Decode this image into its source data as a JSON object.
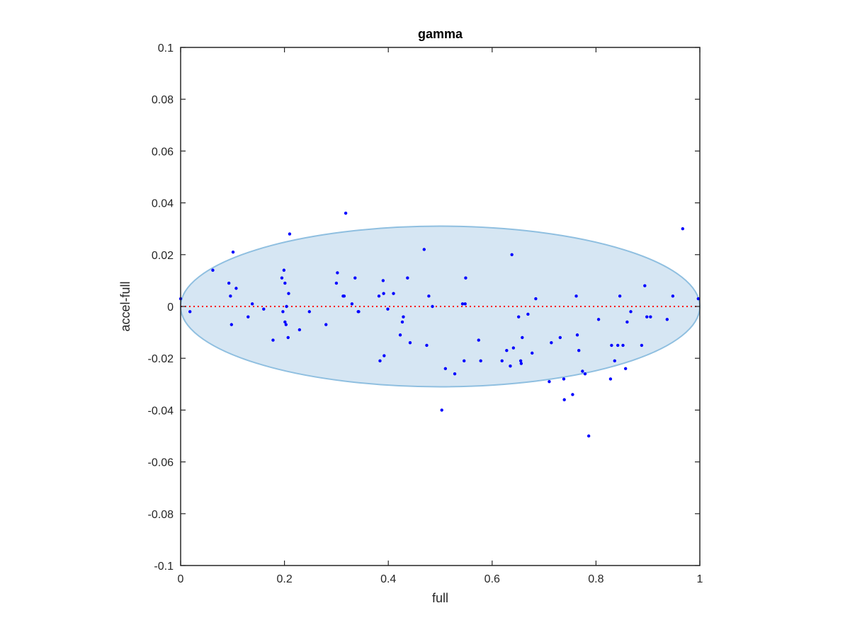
{
  "chart_data": {
    "type": "scatter",
    "title": "gamma",
    "xlabel": "full",
    "ylabel": "accel-full",
    "xlim": [
      0,
      1
    ],
    "ylim": [
      -0.1,
      0.1
    ],
    "x_ticks": [
      "0",
      "0.2",
      "0.4",
      "0.6",
      "0.8",
      "1"
    ],
    "x_tick_values": [
      0,
      0.2,
      0.4,
      0.6,
      0.8,
      1
    ],
    "y_ticks": [
      "-0.1",
      "-0.08",
      "-0.06",
      "-0.04",
      "-0.02",
      "0",
      "0.02",
      "0.04",
      "0.06",
      "0.08",
      "0.1"
    ],
    "y_tick_values": [
      -0.1,
      -0.08,
      -0.06,
      -0.04,
      -0.02,
      0,
      0.02,
      0.04,
      0.06,
      0.08,
      0.1
    ],
    "grid": false,
    "reference_line": {
      "y": 0,
      "style": "dotted",
      "color": "#ff0000"
    },
    "confidence_ellipse": {
      "center": [
        0.5,
        0
      ],
      "semi_x": 0.5,
      "semi_y": 0.031,
      "fill": "#d6e6f3",
      "stroke": "#8fbfe0"
    },
    "point_color": "#0000ff",
    "points": [
      [
        0.0,
        0.003
      ],
      [
        0.018,
        -0.002
      ],
      [
        0.062,
        0.014
      ],
      [
        0.093,
        0.009
      ],
      [
        0.096,
        0.004
      ],
      [
        0.098,
        -0.007
      ],
      [
        0.101,
        0.021
      ],
      [
        0.107,
        0.007
      ],
      [
        0.13,
        -0.004
      ],
      [
        0.138,
        0.001
      ],
      [
        0.16,
        -0.001
      ],
      [
        0.178,
        -0.013
      ],
      [
        0.195,
        0.011
      ],
      [
        0.197,
        -0.002
      ],
      [
        0.199,
        0.014
      ],
      [
        0.201,
        0.009
      ],
      [
        0.201,
        -0.006
      ],
      [
        0.203,
        -0.007
      ],
      [
        0.204,
        0.0
      ],
      [
        0.207,
        -0.012
      ],
      [
        0.208,
        0.005
      ],
      [
        0.21,
        0.028
      ],
      [
        0.229,
        -0.009
      ],
      [
        0.248,
        -0.002
      ],
      [
        0.28,
        -0.007
      ],
      [
        0.3,
        0.009
      ],
      [
        0.302,
        0.013
      ],
      [
        0.313,
        0.004
      ],
      [
        0.315,
        0.004
      ],
      [
        0.318,
        0.036
      ],
      [
        0.33,
        0.001
      ],
      [
        0.336,
        0.011
      ],
      [
        0.342,
        -0.002
      ],
      [
        0.343,
        -0.002
      ],
      [
        0.382,
        0.004
      ],
      [
        0.384,
        -0.021
      ],
      [
        0.39,
        0.01
      ],
      [
        0.391,
        0.005
      ],
      [
        0.392,
        -0.019
      ],
      [
        0.399,
        -0.001
      ],
      [
        0.41,
        0.005
      ],
      [
        0.423,
        -0.011
      ],
      [
        0.427,
        -0.006
      ],
      [
        0.429,
        -0.004
      ],
      [
        0.437,
        0.011
      ],
      [
        0.442,
        -0.014
      ],
      [
        0.469,
        0.022
      ],
      [
        0.474,
        -0.015
      ],
      [
        0.478,
        0.004
      ],
      [
        0.485,
        0.0
      ],
      [
        0.503,
        -0.04
      ],
      [
        0.51,
        -0.024
      ],
      [
        0.528,
        -0.026
      ],
      [
        0.543,
        0.001
      ],
      [
        0.546,
        -0.021
      ],
      [
        0.548,
        0.001
      ],
      [
        0.549,
        0.011
      ],
      [
        0.574,
        -0.013
      ],
      [
        0.578,
        -0.021
      ],
      [
        0.619,
        -0.021
      ],
      [
        0.628,
        -0.017
      ],
      [
        0.635,
        -0.023
      ],
      [
        0.638,
        0.02
      ],
      [
        0.641,
        -0.016
      ],
      [
        0.651,
        -0.004
      ],
      [
        0.655,
        -0.021
      ],
      [
        0.656,
        -0.022
      ],
      [
        0.658,
        -0.012
      ],
      [
        0.669,
        -0.003
      ],
      [
        0.677,
        -0.018
      ],
      [
        0.684,
        0.003
      ],
      [
        0.71,
        -0.029
      ],
      [
        0.714,
        -0.014
      ],
      [
        0.731,
        -0.012
      ],
      [
        0.738,
        -0.028
      ],
      [
        0.739,
        -0.036
      ],
      [
        0.755,
        -0.034
      ],
      [
        0.762,
        0.004
      ],
      [
        0.764,
        -0.011
      ],
      [
        0.767,
        -0.017
      ],
      [
        0.774,
        -0.025
      ],
      [
        0.779,
        -0.026
      ],
      [
        0.786,
        -0.05
      ],
      [
        0.805,
        -0.005
      ],
      [
        0.828,
        -0.028
      ],
      [
        0.83,
        -0.015
      ],
      [
        0.836,
        -0.021
      ],
      [
        0.842,
        -0.015
      ],
      [
        0.846,
        0.004
      ],
      [
        0.852,
        -0.015
      ],
      [
        0.857,
        -0.024
      ],
      [
        0.86,
        -0.006
      ],
      [
        0.867,
        -0.002
      ],
      [
        0.888,
        -0.015
      ],
      [
        0.894,
        0.008
      ],
      [
        0.898,
        -0.004
      ],
      [
        0.905,
        -0.004
      ],
      [
        0.937,
        -0.005
      ],
      [
        0.948,
        0.004
      ],
      [
        0.967,
        0.03
      ],
      [
        0.997,
        0.003
      ]
    ]
  }
}
